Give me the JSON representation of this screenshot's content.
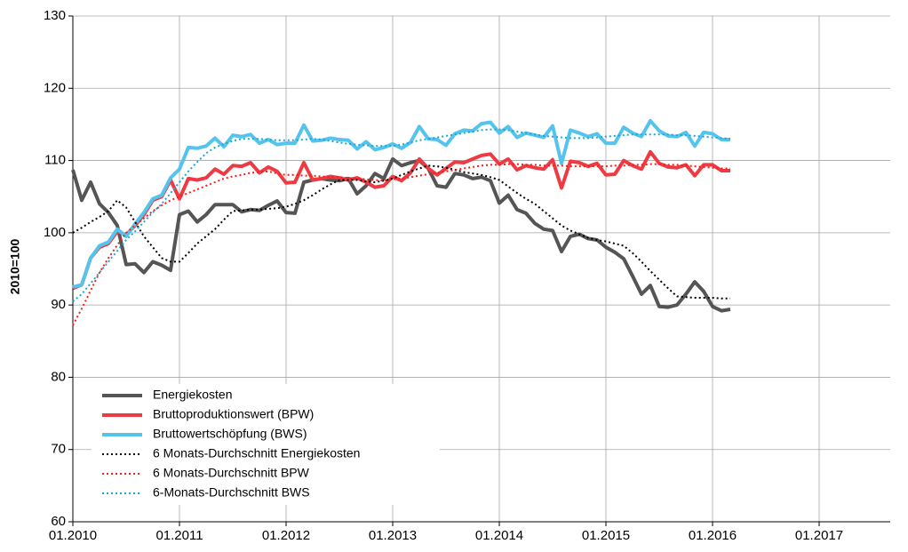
{
  "chart_data": {
    "type": "line",
    "y_label": "2010=100",
    "x": [
      "01.2010",
      "02.2010",
      "03.2010",
      "04.2010",
      "05.2010",
      "06.2010",
      "07.2010",
      "08.2010",
      "09.2010",
      "10.2010",
      "11.2010",
      "12.2010",
      "01.2011",
      "02.2011",
      "03.2011",
      "04.2011",
      "05.2011",
      "06.2011",
      "07.2011",
      "08.2011",
      "09.2011",
      "10.2011",
      "11.2011",
      "12.2011",
      "01.2012",
      "02.2012",
      "03.2012",
      "04.2012",
      "05.2012",
      "06.2012",
      "07.2012",
      "08.2012",
      "09.2012",
      "10.2012",
      "11.2012",
      "12.2012",
      "01.2013",
      "02.2013",
      "03.2013",
      "04.2013",
      "05.2013",
      "06.2013",
      "07.2013",
      "08.2013",
      "09.2013",
      "10.2013",
      "11.2013",
      "12.2013",
      "01.2014",
      "02.2014",
      "03.2014",
      "04.2014",
      "05.2014",
      "06.2014",
      "07.2014",
      "08.2014",
      "09.2014",
      "10.2014",
      "11.2014",
      "12.2014",
      "01.2015",
      "02.2015",
      "03.2015",
      "04.2015",
      "05.2015",
      "06.2015",
      "07.2015",
      "08.2015",
      "09.2015",
      "10.2015",
      "11.2015",
      "12.2015",
      "01.2016",
      "02.2016",
      "03.2016"
    ],
    "xlim": [
      "01.2010",
      "09.2017"
    ],
    "xticks": [
      "01.2010",
      "01.2011",
      "01.2012",
      "01.2013",
      "01.2014",
      "01.2015",
      "01.2016",
      "01.2017"
    ],
    "ylim": [
      60,
      130
    ],
    "yticks": [
      60,
      70,
      80,
      90,
      100,
      110,
      120,
      130
    ],
    "grid": true,
    "legend": "lower left",
    "series": [
      {
        "name": "Energiekosten",
        "color": "#555555",
        "line_style": "solid",
        "values": [
          108.7,
          104.5,
          107,
          104,
          102.8,
          101,
          95.6,
          95.7,
          94.5,
          96,
          95.5,
          94.8,
          102.5,
          103,
          101.5,
          102.5,
          103.9,
          103.9,
          103.9,
          102.9,
          103.2,
          103.1,
          103.8,
          104.4,
          102.8,
          102.7,
          107,
          107.3,
          107.5,
          107.3,
          107.2,
          107.5,
          105.4,
          106.5,
          108.2,
          107.5,
          110.2,
          109.3,
          109.7,
          110,
          108.9,
          106.5,
          106.3,
          108.2,
          108,
          107.5,
          107.7,
          107.2,
          104.1,
          105.2,
          103.2,
          102.7,
          101.3,
          100.5,
          100.3,
          97.4,
          99.5,
          99.8,
          99.2,
          99,
          98,
          97.3,
          96.4,
          94,
          91.5,
          92.7,
          89.8,
          89.7,
          90,
          91.5,
          93.2,
          91.9,
          89.8,
          89.2,
          89.4
        ]
      },
      {
        "name": "Bruttoproduktionswert (BPW)",
        "color": "#ee3a43",
        "line_style": "solid",
        "values": [
          92.3,
          92.8,
          96.5,
          98,
          98.5,
          100.2,
          99.7,
          101,
          102.5,
          104.5,
          105,
          107.3,
          104.7,
          107.5,
          107.3,
          107.6,
          108.8,
          108.1,
          109.3,
          109.2,
          109.7,
          108.3,
          109.1,
          108.5,
          106.9,
          107,
          109.7,
          107.3,
          107.5,
          107.8,
          107.6,
          107.3,
          107.6,
          107,
          106.3,
          106.5,
          107.8,
          107.2,
          108.3,
          110.2,
          108.9,
          108,
          108.9,
          109.8,
          109.7,
          110.2,
          110.7,
          110.9,
          109.5,
          110.2,
          108.7,
          109.3,
          109,
          108.8,
          110.1,
          106.2,
          109.9,
          109.7,
          109.2,
          109.6,
          108,
          108.1,
          110,
          109.3,
          108.8,
          111.2,
          109.6,
          109.1,
          109,
          109.4,
          107.9,
          109.4,
          109.4,
          108.6,
          108.6
        ]
      },
      {
        "name": "Bruttowertschöpfung (BWS)",
        "color": "#55c4ec",
        "line_style": "solid",
        "values": [
          92.5,
          92.8,
          96.5,
          98.2,
          98.7,
          100.5,
          99.5,
          101.2,
          102.8,
          104.7,
          105.2,
          107.6,
          108.8,
          111.8,
          111.7,
          112,
          113.1,
          111.9,
          113.5,
          113.3,
          113.6,
          112.4,
          112.9,
          112.2,
          112.4,
          112.4,
          114.9,
          112.7,
          112.8,
          113.1,
          112.9,
          112.8,
          111.6,
          112.6,
          111.5,
          111.8,
          112.3,
          111.7,
          112.5,
          114.7,
          113,
          112.9,
          112.1,
          113.7,
          114.2,
          114.1,
          115.1,
          115.3,
          113.8,
          114.7,
          113.2,
          113.8,
          113.5,
          113.2,
          114.8,
          109.6,
          114.2,
          113.8,
          113.3,
          113.7,
          112.4,
          112.4,
          114.6,
          113.8,
          113.3,
          115.5,
          114.1,
          113.4,
          113.3,
          113.9,
          112,
          113.9,
          113.7,
          112.9,
          112.9
        ]
      },
      {
        "name": "6 Monats-Durchschnitt Energiekosten",
        "color": "#000000",
        "line_style": "dotted",
        "values": [
          100,
          100.7,
          101.5,
          102.2,
          103,
          104.5,
          103.5,
          101.5,
          99.5,
          98,
          96.5,
          96,
          96,
          97.2,
          98.5,
          99.5,
          100.5,
          101.8,
          103,
          103.1,
          103.2,
          103.2,
          103.3,
          103.4,
          103.6,
          104,
          104.5,
          105.2,
          106,
          106.7,
          107.3,
          107.3,
          107.3,
          107.1,
          107,
          107.2,
          107.5,
          108,
          108.5,
          108.9,
          109.3,
          109.2,
          109,
          108.7,
          108.4,
          108.2,
          108,
          107.7,
          107.3,
          106.4,
          105.5,
          104.7,
          104,
          103,
          102,
          101,
          100.3,
          99.8,
          99.3,
          99,
          98.8,
          98.5,
          98.2,
          97.2,
          96,
          94.7,
          93.5,
          92.3,
          91.2,
          91.1,
          91,
          91,
          91,
          90.9,
          90.9
        ]
      },
      {
        "name": "6 Monats-Durchschnitt BPW",
        "color": "#ff1a1a",
        "line_style": "dotted",
        "values": [
          87.2,
          89.5,
          92,
          94.5,
          96.5,
          98.3,
          100,
          101,
          102,
          103,
          103.8,
          104.5,
          105,
          105.5,
          106,
          106.5,
          107,
          107.5,
          107.8,
          108,
          108.3,
          108.4,
          108.5,
          108.2,
          108,
          108,
          107.9,
          107.9,
          107.8,
          107.7,
          107.7,
          107.6,
          107.5,
          107.4,
          107.3,
          107.2,
          107.4,
          107.5,
          107.7,
          107.9,
          108.1,
          108.3,
          108.5,
          108.7,
          108.9,
          109.1,
          109.3,
          109.4,
          109.4,
          109.5,
          109.5,
          109.4,
          109.4,
          109.3,
          109.3,
          109.3,
          109.2,
          109.2,
          109.2,
          109.2,
          109.2,
          109.3,
          109.3,
          109.4,
          109.4,
          109.5,
          109.5,
          109.4,
          109.4,
          109.3,
          109.2,
          109.1,
          109,
          108.9,
          108.9
        ]
      },
      {
        "name": "6-Monats-Durchschnitt BWS",
        "color": "#1aa6d6",
        "line_style": "dotted",
        "values": [
          90.5,
          91.5,
          93,
          94.5,
          96,
          97.5,
          99,
          100.2,
          101.5,
          102.8,
          104,
          105.5,
          107,
          108.5,
          109.8,
          111,
          111.8,
          112.3,
          112.7,
          113,
          113,
          113,
          112.9,
          112.8,
          112.8,
          112.8,
          112.9,
          113,
          112.9,
          112.7,
          112.5,
          112.3,
          112.2,
          112.1,
          112,
          112,
          112,
          112.2,
          112.5,
          112.8,
          113,
          113.2,
          113.4,
          113.6,
          113.8,
          114,
          114.2,
          114.3,
          114.3,
          114.2,
          114,
          113.8,
          113.6,
          113.4,
          113.3,
          113.2,
          113.1,
          113.1,
          113.1,
          113.2,
          113.3,
          113.4,
          113.5,
          113.6,
          113.6,
          113.6,
          113.6,
          113.6,
          113.5,
          113.5,
          113.4,
          113.3,
          113.2,
          113.1,
          113
        ]
      }
    ]
  }
}
